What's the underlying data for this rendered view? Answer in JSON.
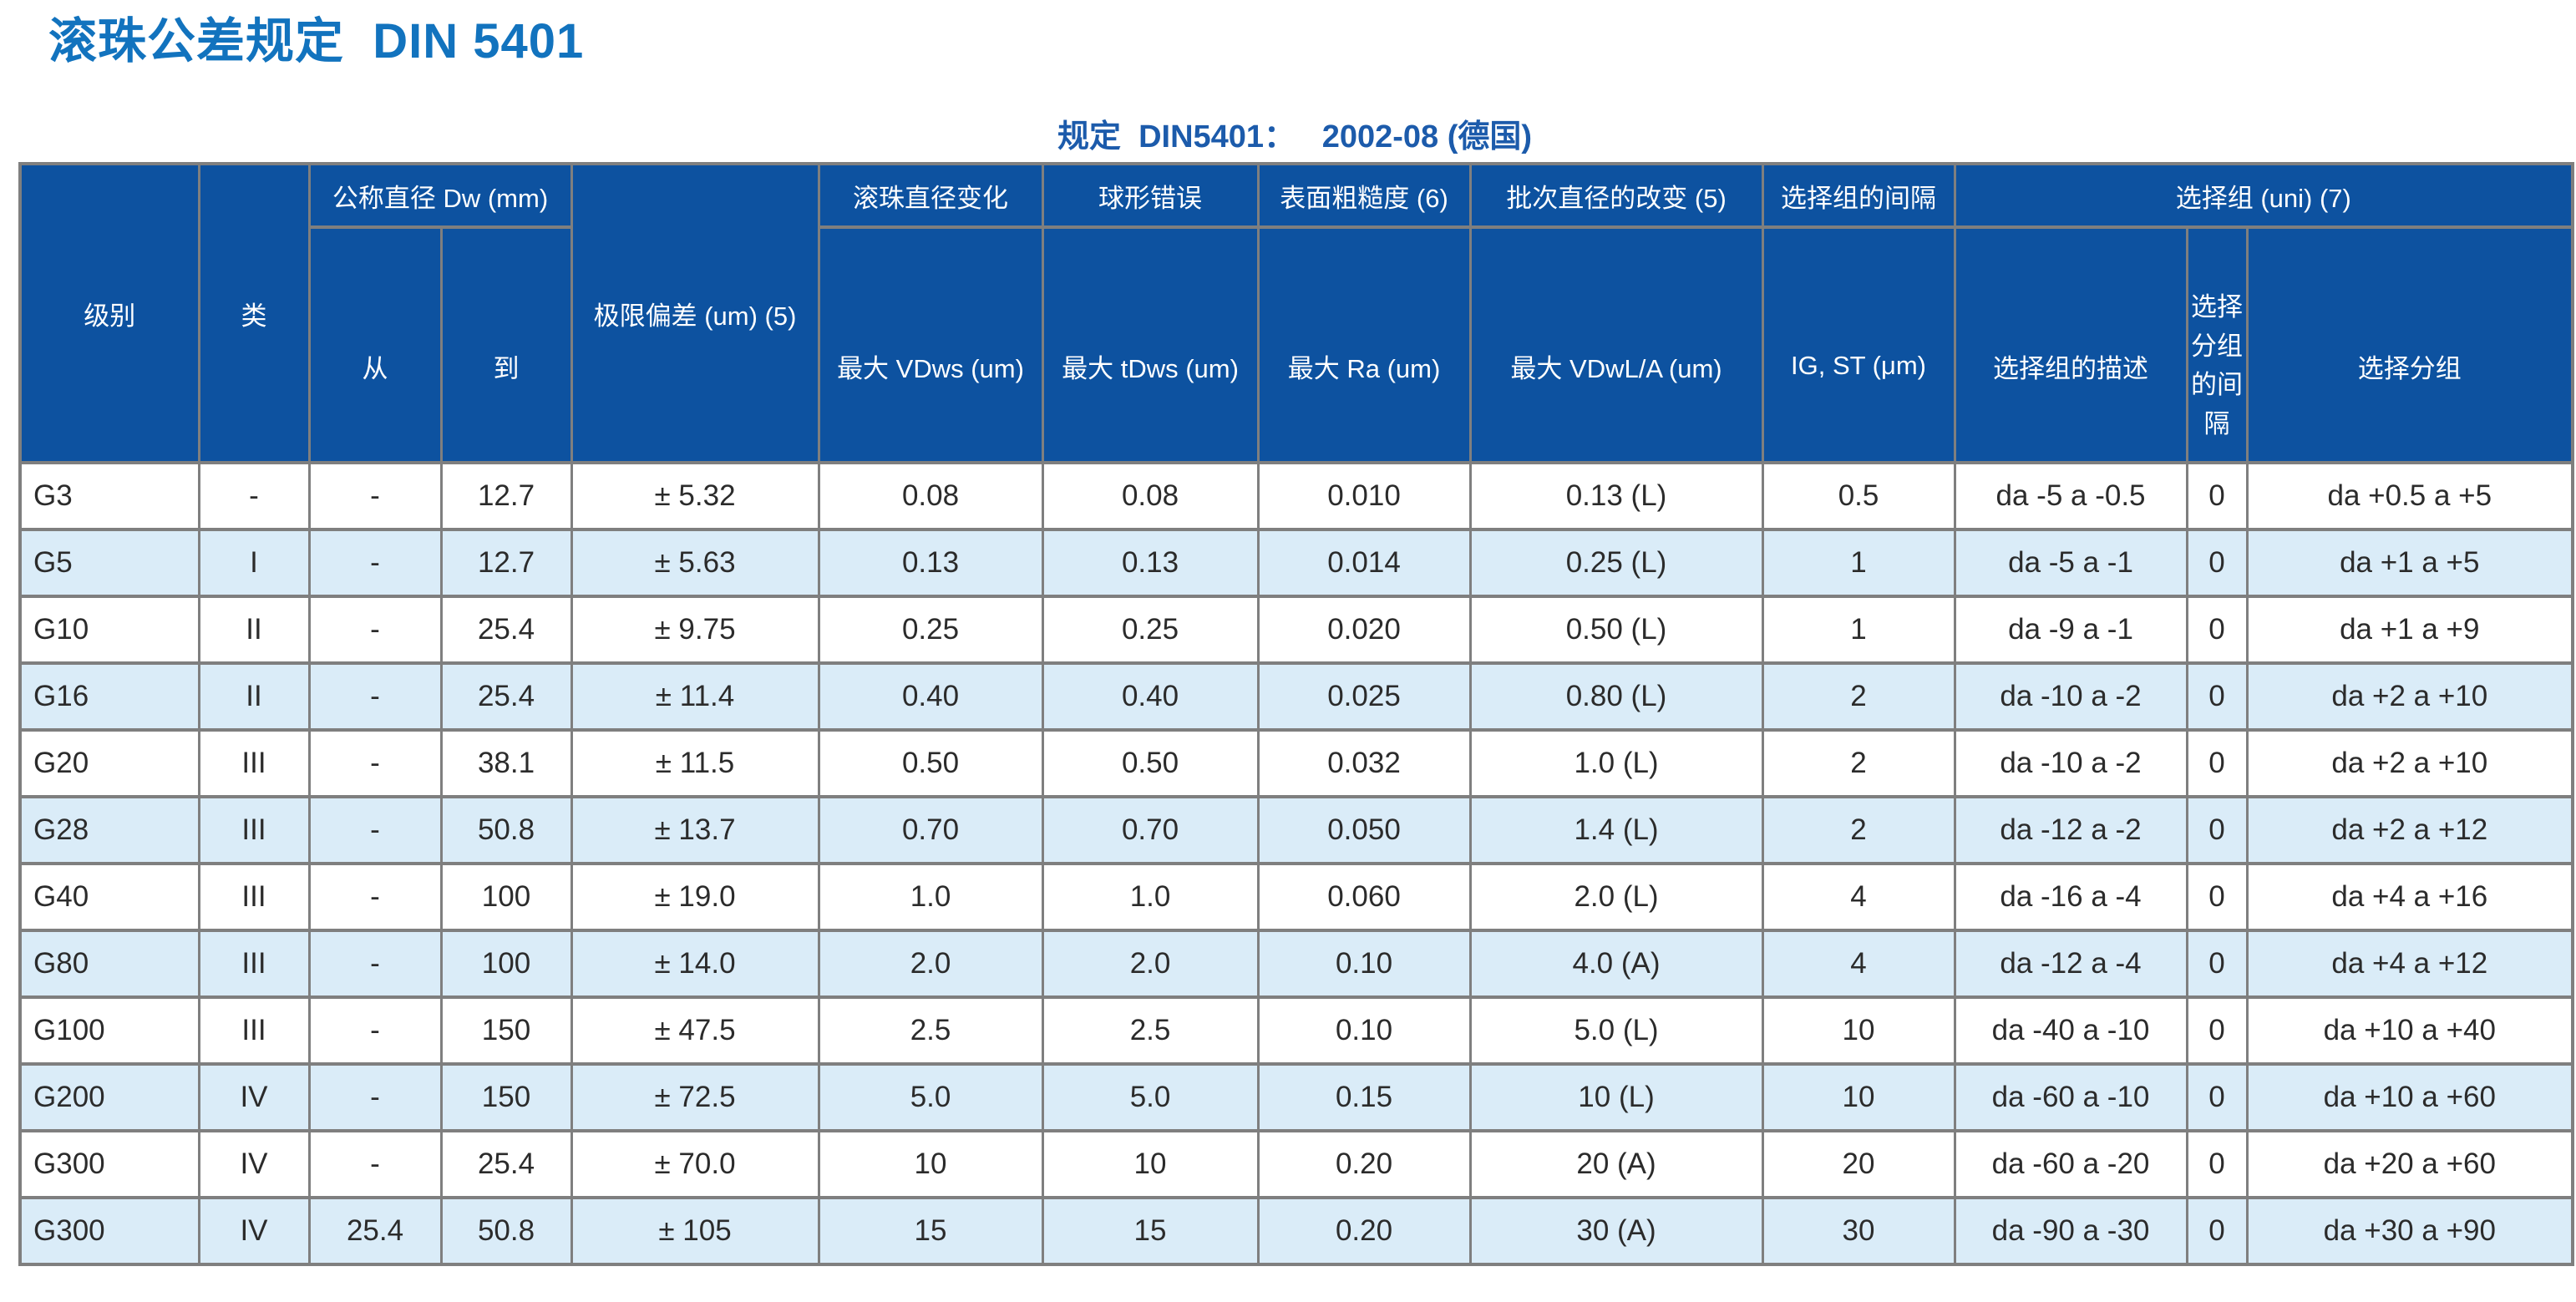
{
  "page": {
    "title": "滚珠公差规定  DIN 5401",
    "subtitle": "规定  DIN5401：   2002-08 (德国)"
  },
  "colors": {
    "header_bg": "#0d52a0",
    "row_alt": "#daecf8",
    "title": "#1273be",
    "subtitle": "#1c5bab",
    "border": "#7f7f7f",
    "text": "#2b2b2b"
  },
  "table": {
    "headers": {
      "grade": "级别",
      "cls": "类",
      "nominal_diameter": "公称直径  Dw (mm)",
      "from": "从",
      "to": "到",
      "limit_deviation": "极限偏差  (um) (5)",
      "ball_diameter_variation": "滚珠直径变化",
      "max_vdws": "最大  VDws (um)",
      "spherical_error": "球形错误",
      "max_tdws": "最大  tDws (um)",
      "surface_roughness": "表面粗糙度  (6)",
      "max_ra": "最大  Ra (um)",
      "batch_diameter_change": "批次直径的改变 (5)",
      "max_vdwl": "最大  VDwL/A (um)",
      "selection_group_interval": "选择组的间隔",
      "ig_st": "IG, ST (μm)",
      "selection_group": "选择组  (uni) (7)",
      "selection_group_desc": "选择组的描述",
      "selection_subgroup_interval": "选择分组的间隔",
      "selection_subgroup": "选择分组"
    },
    "rows": [
      [
        "G3",
        "-",
        "-",
        "12.7",
        "± 5.32",
        "0.08",
        "0.08",
        "0.010",
        "0.13 (L)",
        "0.5",
        "da -5 a -0.5",
        "0",
        "da +0.5 a +5"
      ],
      [
        "G5",
        "I",
        "-",
        "12.7",
        "± 5.63",
        "0.13",
        "0.13",
        "0.014",
        "0.25 (L)",
        "1",
        "da -5 a -1",
        "0",
        "da +1 a +5"
      ],
      [
        "G10",
        "II",
        "-",
        "25.4",
        "± 9.75",
        "0.25",
        "0.25",
        "0.020",
        "0.50 (L)",
        "1",
        "da -9 a -1",
        "0",
        "da +1 a +9"
      ],
      [
        "G16",
        "II",
        "-",
        "25.4",
        "± 11.4",
        "0.40",
        "0.40",
        "0.025",
        "0.80 (L)",
        "2",
        "da -10 a -2",
        "0",
        "da +2 a +10"
      ],
      [
        "G20",
        "III",
        "-",
        "38.1",
        "± 11.5",
        "0.50",
        "0.50",
        "0.032",
        "1.0 (L)",
        "2",
        "da -10 a -2",
        "0",
        "da +2 a +10"
      ],
      [
        "G28",
        "III",
        "-",
        "50.8",
        "± 13.7",
        "0.70",
        "0.70",
        "0.050",
        "1.4 (L)",
        "2",
        "da -12 a -2",
        "0",
        "da +2 a +12"
      ],
      [
        "G40",
        "III",
        "-",
        "100",
        "± 19.0",
        "1.0",
        "1.0",
        "0.060",
        "2.0 (L)",
        "4",
        "da -16 a -4",
        "0",
        "da +4 a +16"
      ],
      [
        "G80",
        "III",
        "-",
        "100",
        "± 14.0",
        "2.0",
        "2.0",
        "0.10",
        "4.0 (A)",
        "4",
        "da -12 a -4",
        "0",
        "da +4 a +12"
      ],
      [
        "G100",
        "III",
        "-",
        "150",
        "± 47.5",
        "2.5",
        "2.5",
        "0.10",
        "5.0 (L)",
        "10",
        "da -40 a -10",
        "0",
        "da +10 a +40"
      ],
      [
        "G200",
        "IV",
        "-",
        "150",
        "± 72.5",
        "5.0",
        "5.0",
        "0.15",
        "10 (L)",
        "10",
        "da -60 a -10",
        "0",
        "da +10 a +60"
      ],
      [
        "G300",
        "IV",
        "-",
        "25.4",
        "± 70.0",
        "10",
        "10",
        "0.20",
        "20 (A)",
        "20",
        "da -60 a -20",
        "0",
        "da +20 a +60"
      ],
      [
        "G300",
        "IV",
        "25.4",
        "50.8",
        "± 105",
        "15",
        "15",
        "0.20",
        "30 (A)",
        "30",
        "da -90 a -30",
        "0",
        "da +30 a +90"
      ]
    ]
  }
}
